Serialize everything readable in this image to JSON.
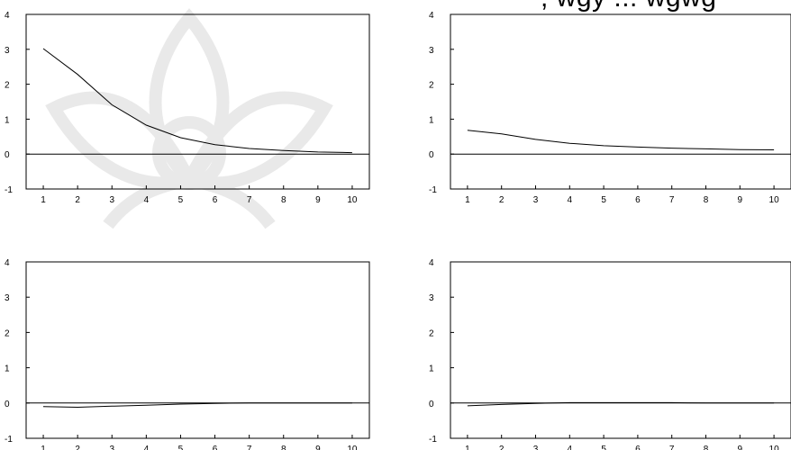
{
  "header_fragment": ", wgy ... wgwg",
  "chart_data": [
    {
      "type": "line",
      "x": [
        1,
        2,
        3,
        4,
        5,
        6,
        7,
        8,
        9,
        10
      ],
      "series": [
        {
          "values": [
            3.02,
            2.28,
            1.41,
            0.83,
            0.47,
            0.27,
            0.16,
            0.1,
            0.06,
            0.04
          ]
        }
      ],
      "ylim": [
        -1,
        4
      ],
      "yticks": [
        -1,
        0,
        1,
        2,
        3,
        4
      ],
      "xticks": [
        1,
        2,
        3,
        4,
        5,
        6,
        7,
        8,
        9,
        10
      ],
      "zero_line": true,
      "grid": false
    },
    {
      "type": "line",
      "x": [
        1,
        2,
        3,
        4,
        5,
        6,
        7,
        8,
        9,
        10
      ],
      "series": [
        {
          "values": [
            0.68,
            0.58,
            0.42,
            0.31,
            0.24,
            0.2,
            0.17,
            0.15,
            0.13,
            0.12
          ]
        }
      ],
      "ylim": [
        -1,
        4
      ],
      "yticks": [
        -1,
        0,
        1,
        2,
        3,
        4
      ],
      "xticks": [
        1,
        2,
        3,
        4,
        5,
        6,
        7,
        8,
        9,
        10
      ],
      "zero_line": true,
      "grid": false
    },
    {
      "type": "line",
      "x": [
        1,
        2,
        3,
        4,
        5,
        6,
        7,
        8,
        9,
        10
      ],
      "series": [
        {
          "values": [
            -0.1,
            -0.12,
            -0.09,
            -0.06,
            -0.03,
            -0.01,
            0.0,
            0.0,
            0.0,
            0.0
          ]
        }
      ],
      "ylim": [
        -1,
        4
      ],
      "yticks": [
        -1,
        0,
        1,
        2,
        3,
        4
      ],
      "xticks": [
        1,
        2,
        3,
        4,
        5,
        6,
        7,
        8,
        9,
        10
      ],
      "zero_line": true,
      "grid": false
    },
    {
      "type": "line",
      "x": [
        1,
        2,
        3,
        4,
        5,
        6,
        7,
        8,
        9,
        10
      ],
      "series": [
        {
          "values": [
            -0.08,
            -0.04,
            -0.01,
            0.01,
            0.01,
            0.01,
            0.01,
            0.0,
            0.0,
            0.0
          ]
        }
      ],
      "ylim": [
        -1,
        4
      ],
      "yticks": [
        -1,
        0,
        1,
        2,
        3,
        4
      ],
      "xticks": [
        1,
        2,
        3,
        4,
        5,
        6,
        7,
        8,
        9,
        10
      ],
      "zero_line": true,
      "grid": false
    }
  ]
}
